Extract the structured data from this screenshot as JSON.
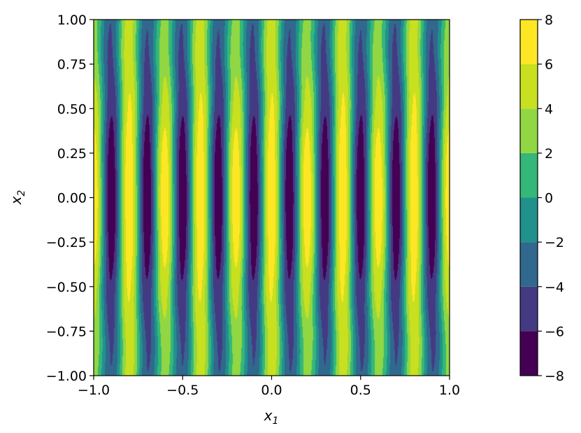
{
  "chart_data": {
    "type": "heatmap",
    "subtype": "filled-contour",
    "title": "",
    "xlabel": "x",
    "xlabel_sub": "1",
    "ylabel": "x",
    "ylabel_sub": "2",
    "xlim": [
      -1.0,
      1.0
    ],
    "ylim": [
      -1.0,
      1.0
    ],
    "x_ticks": [
      "−1.0",
      "−0.5",
      "0.0",
      "0.5",
      "1.0"
    ],
    "x_tick_values": [
      -1.0,
      -0.5,
      0.0,
      0.5,
      1.0
    ],
    "y_ticks": [
      "1.00",
      "0.75",
      "0.50",
      "0.25",
      "0.00",
      "−0.25",
      "−0.50",
      "−0.75",
      "−1.00"
    ],
    "y_tick_values": [
      1.0,
      0.75,
      0.5,
      0.25,
      0.0,
      -0.25,
      -0.5,
      -0.75,
      -1.0
    ],
    "colorbar": {
      "colormap": "viridis",
      "levels": [
        -8,
        -6,
        -4,
        -2,
        0,
        2,
        4,
        6,
        8
      ],
      "tick_labels": [
        "8",
        "6",
        "4",
        "2",
        "0",
        "−2",
        "−4",
        "−6",
        "−8"
      ],
      "tick_values": [
        8,
        6,
        4,
        2,
        0,
        -2,
        -4,
        -6,
        -8
      ],
      "colors": [
        "#440154",
        "#443a83",
        "#31688e",
        "#21918c",
        "#35b779",
        "#90d743",
        "#c8e020",
        "#fde725"
      ]
    },
    "field": {
      "stripe_period_x1": 0.2,
      "peak_value": 8,
      "trough_value": -8
    },
    "grid": false,
    "legend": "none"
  }
}
